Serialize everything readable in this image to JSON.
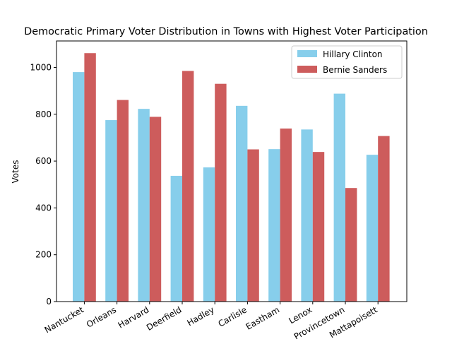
{
  "chart_data": {
    "type": "bar",
    "title": "Democratic Primary Voter Distribution in Towns with Highest Voter Participation",
    "xlabel": "",
    "ylabel": "Votes",
    "ylim": [
      0,
      1113
    ],
    "yticks": [
      0,
      200,
      400,
      600,
      800,
      1000
    ],
    "categories": [
      "Nantucket",
      "Orleans",
      "Harvard",
      "Deerfield",
      "Hadley",
      "Carlisle",
      "Eastham",
      "Lenox",
      "Provincetown",
      "Mattapoisett"
    ],
    "series": [
      {
        "name": "Hillary Clinton",
        "color": "#87ceeb",
        "values": [
          980,
          775,
          823,
          537,
          573,
          836,
          651,
          735,
          888,
          627
        ]
      },
      {
        "name": "Bernie Sanders",
        "color": "#cd5c5c",
        "values": [
          1061,
          861,
          789,
          985,
          930,
          650,
          739,
          639,
          485,
          707
        ]
      }
    ],
    "grid": false,
    "legend_position": "top-right"
  }
}
